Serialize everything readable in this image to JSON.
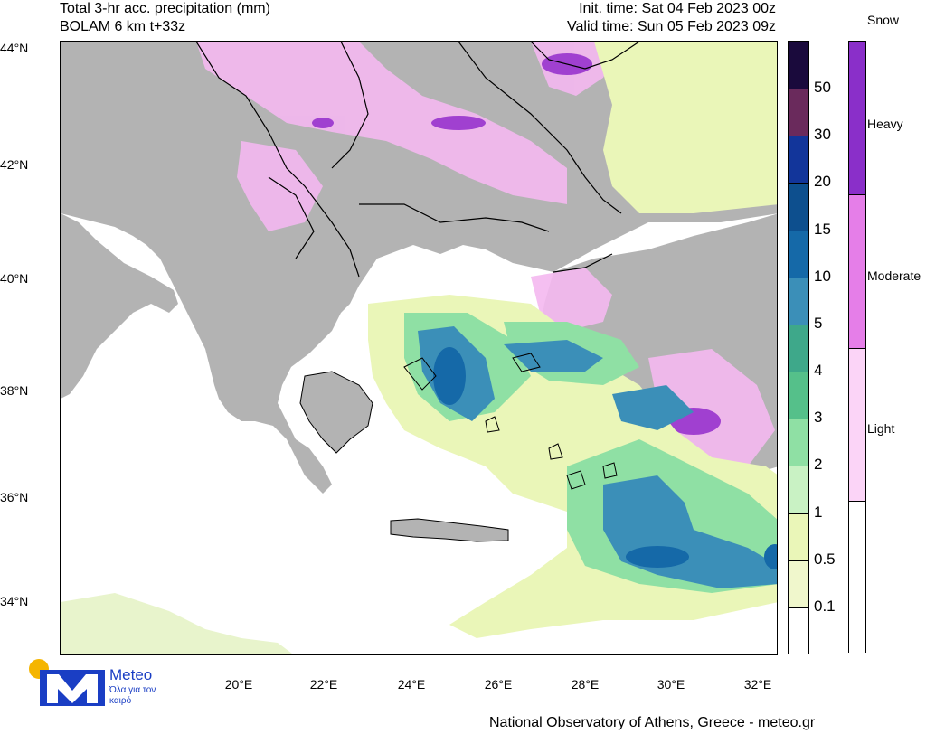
{
  "header": {
    "title_line1": "Total 3-hr acc. precipitation (mm)",
    "title_line2": "BOLAM 6 km t+33z",
    "init_time": "Init. time: Sat 04 Feb 2023 00z",
    "valid_time": "Valid time: Sun 05 Feb 2023 09z"
  },
  "axes": {
    "lat_labels": [
      "44°N",
      "42°N",
      "40°N",
      "38°N",
      "36°N",
      "34°N"
    ],
    "lon_labels": [
      "20°E",
      "22°E",
      "24°E",
      "26°E",
      "28°E",
      "30°E",
      "32°E"
    ]
  },
  "legend": {
    "rain_levels": [
      "50",
      "30",
      "20",
      "15",
      "10",
      "5",
      "4",
      "3",
      "2",
      "1",
      "0.5",
      "0.1"
    ],
    "rain_colors": [
      "#1a0a3c",
      "#6a2a5c",
      "#12359a",
      "#0d4f8e",
      "#1569a8",
      "#3b8fb8",
      "#3ea88a",
      "#55c08a",
      "#8fe0a4",
      "#c9f2c4",
      "#eaf6b8",
      "#f0f7cc",
      "#ffffff"
    ],
    "snow_title": "Snow",
    "snow_levels": [
      "Heavy",
      "Moderate",
      "Light"
    ],
    "snow_colors": [
      "#8a2fc9",
      "#e57ee8",
      "#fbd4f7",
      "#ffffff"
    ]
  },
  "map_colors": {
    "land": "#b3b3b3",
    "sea": "#ffffff"
  },
  "footer": {
    "credit": "National Observatory of Athens, Greece - meteo.gr"
  },
  "logo": {
    "name": "Meteo",
    "slogan": "Όλα για τον καιρό"
  }
}
